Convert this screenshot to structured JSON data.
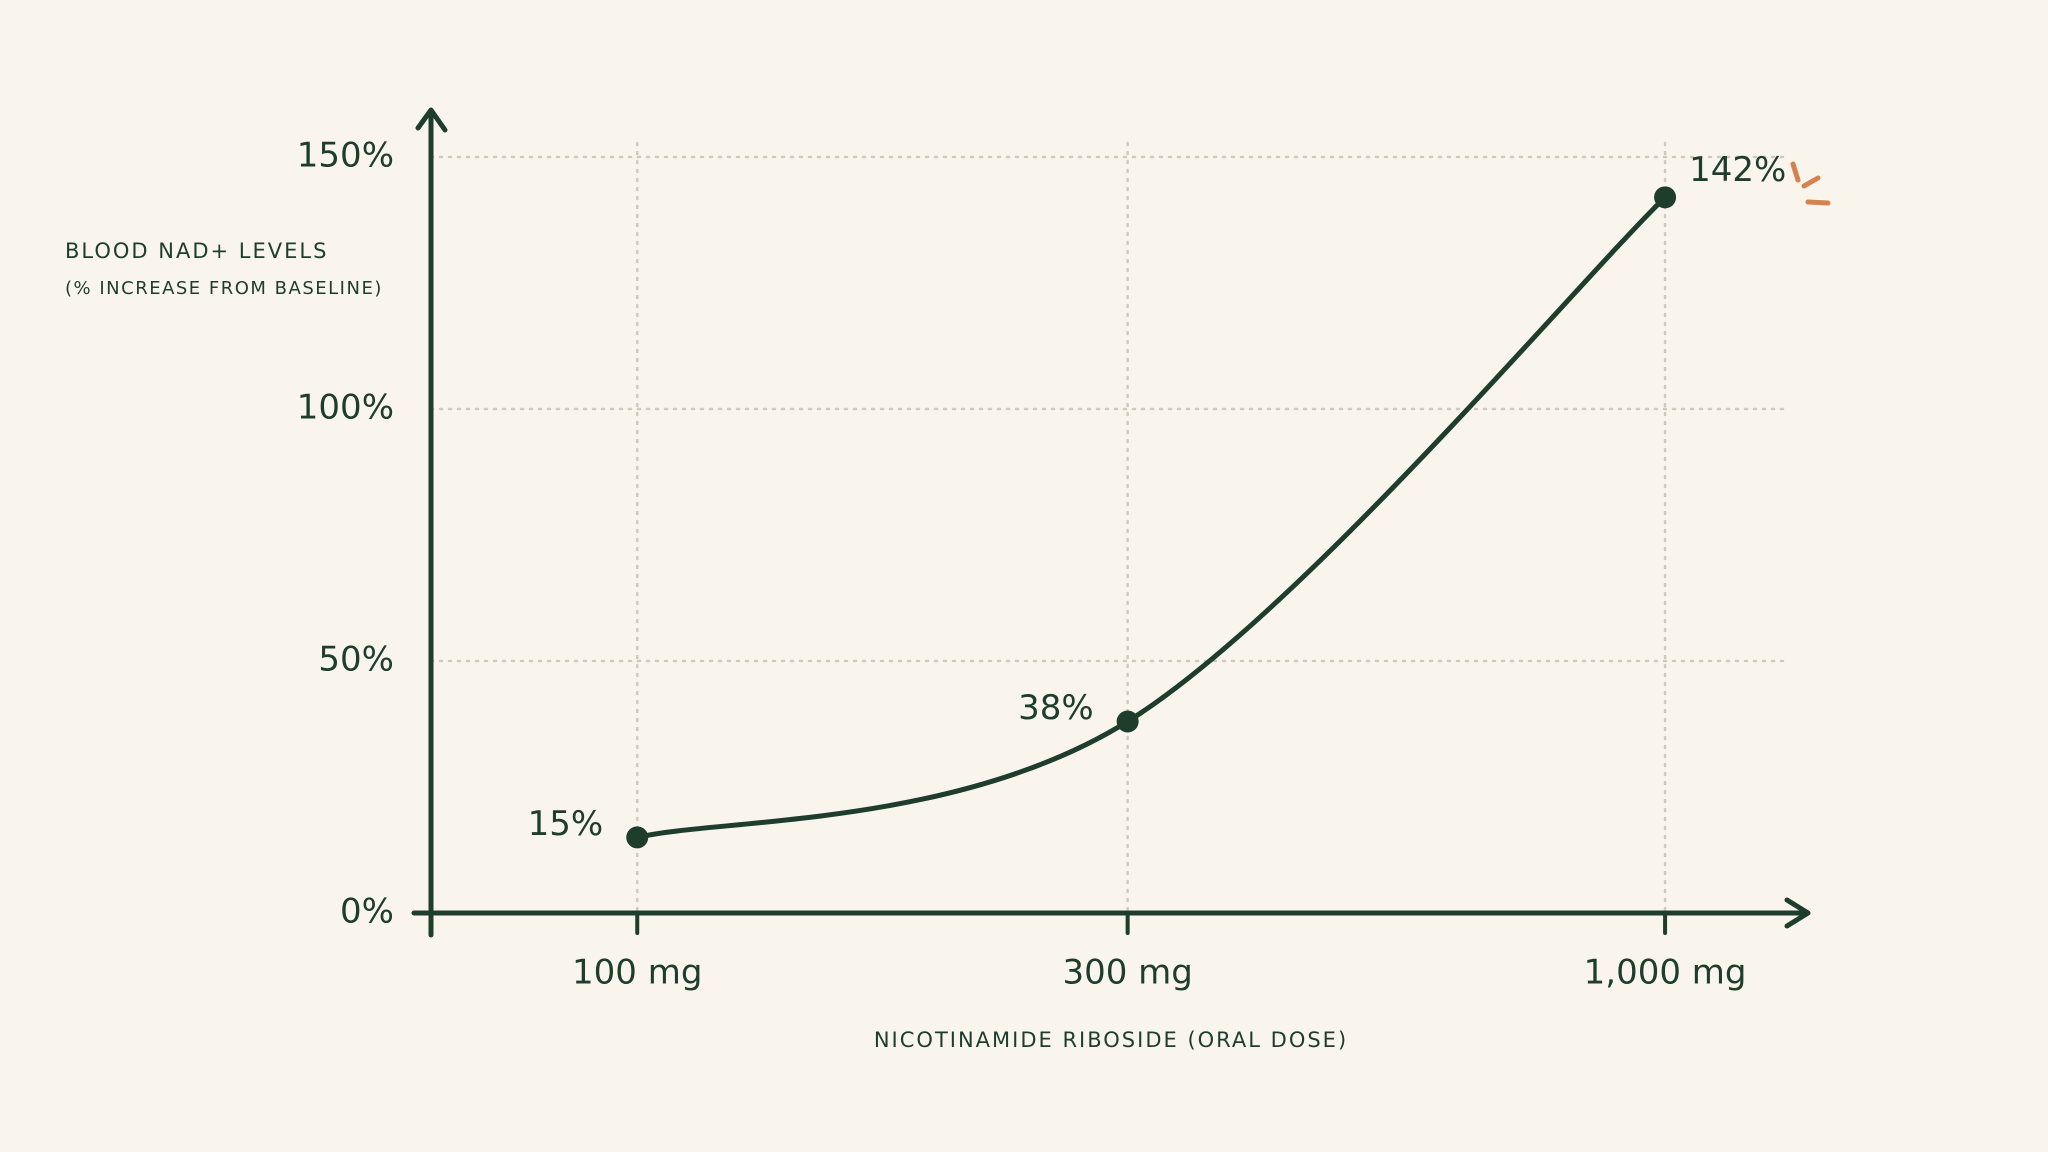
{
  "chart_data": {
    "type": "line",
    "y_label": [
      "BLOOD NAD+ LEVELS",
      "(% INCREASE FROM BASELINE)"
    ],
    "x_label": "NICOTINAMIDE RIBOSIDE (ORAL DOSE)",
    "x": [
      100,
      300,
      1000
    ],
    "values": [
      15,
      38,
      142
    ],
    "value_labels": [
      "15%",
      "38%",
      "142%"
    ],
    "color": "#1e3d2a",
    "xlog": true,
    "xlim": [
      63,
      1320
    ],
    "xticks": [
      {
        "value": 100,
        "label": "100 mg"
      },
      {
        "value": 300,
        "label": "300 mg"
      },
      {
        "value": 1000,
        "label": "1,000 mg"
      }
    ],
    "ylim": [
      0,
      150
    ],
    "yticks": [
      {
        "value": 0,
        "label": "0%"
      },
      {
        "value": 50,
        "label": "50%"
      },
      {
        "value": 100,
        "label": "100%"
      },
      {
        "value": 150,
        "label": "150%"
      }
    ],
    "grid": true
  }
}
